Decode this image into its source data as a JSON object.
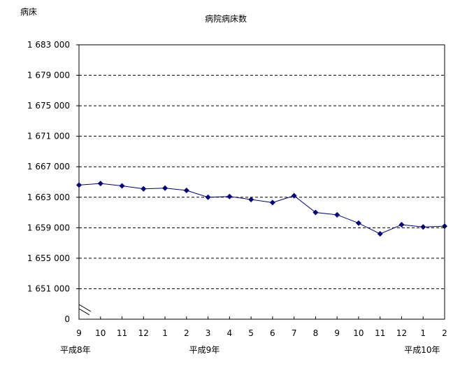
{
  "chart_data": {
    "type": "line",
    "title": "病院病床数",
    "ylabel": "病床",
    "xlabel": "",
    "categories": [
      "9",
      "10",
      "11",
      "12",
      "1",
      "2",
      "3",
      "4",
      "5",
      "6",
      "7",
      "8",
      "9",
      "10",
      "11",
      "12",
      "1",
      "2"
    ],
    "era_labels": [
      {
        "label": "平成8年",
        "at_index": 0
      },
      {
        "label": "平成9年",
        "at_index": 6
      },
      {
        "label": "平成10年",
        "at_index": 16
      }
    ],
    "series": [
      {
        "values": [
          1664600,
          1664800,
          1664500,
          1664100,
          1664200,
          1663900,
          1663000,
          1663100,
          1662700,
          1662300,
          1663200,
          1661000,
          1660700,
          1659600,
          1658200,
          1659400,
          1659100,
          1659200
        ],
        "color": "#000080",
        "marker": "diamond"
      }
    ],
    "ylim": [
      1647000,
      1683000
    ],
    "yticks": [
      1651000,
      1655000,
      1659000,
      1663000,
      1667000,
      1671000,
      1675000,
      1679000,
      1683000
    ],
    "ytick_labels": [
      "1 651 000",
      "1 655 000",
      "1 659 000",
      "1 663 000",
      "1 667 000",
      "1 671 000",
      "1 675 000",
      "1 679 000",
      "1 683 000"
    ],
    "y_bottom_label": "0",
    "axis_break": true,
    "grid": "horizontal dashed",
    "legend": "none"
  }
}
